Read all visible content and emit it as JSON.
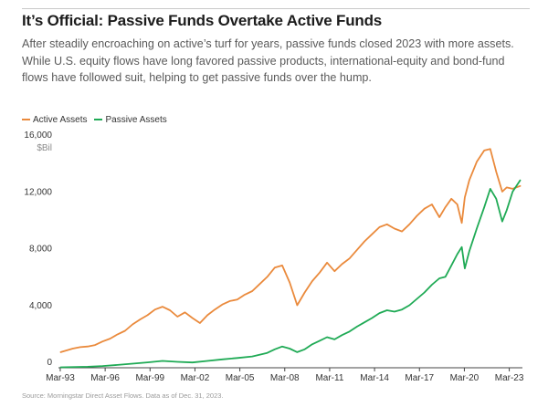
{
  "header": {
    "title": "It’s Official: Passive Funds Overtake Active Funds",
    "subtitle": "After steadily encroaching on active’s turf for years, passive funds closed 2023 with more assets. While U.S. equity flows have long favored passive products, international-equity and bond-fund flows have followed suit, helping to get passive funds over the hump."
  },
  "footer": {
    "source": "Source: Morningstar Direct Asset Flows. Data as of Dec. 31, 2023."
  },
  "chart_data": {
    "type": "line",
    "title": "It’s Official: Passive Funds Overtake Active Funds",
    "xlabel": "",
    "ylabel": "",
    "y_unit_label": "$Bil",
    "xlim": [
      1993.2,
      2024.0
    ],
    "ylim": [
      0,
      16000
    ],
    "x_ticks": [
      {
        "value": 1993.17,
        "label": "Mar-93"
      },
      {
        "value": 1996.17,
        "label": "Mar-96"
      },
      {
        "value": 1999.17,
        "label": "Mar-99"
      },
      {
        "value": 2002.17,
        "label": "Mar-02"
      },
      {
        "value": 2005.17,
        "label": "Mar-05"
      },
      {
        "value": 2008.17,
        "label": "Mar-08"
      },
      {
        "value": 2011.17,
        "label": "Mar-11"
      },
      {
        "value": 2014.17,
        "label": "Mar-14"
      },
      {
        "value": 2017.17,
        "label": "Mar-17"
      },
      {
        "value": 2020.17,
        "label": "Mar-20"
      },
      {
        "value": 2023.17,
        "label": "Mar-23"
      }
    ],
    "y_ticks": [
      {
        "value": 0,
        "label": "0"
      },
      {
        "value": 4000,
        "label": "4,000"
      },
      {
        "value": 8000,
        "label": "8,000"
      },
      {
        "value": 12000,
        "label": "12,000"
      },
      {
        "value": 16000,
        "label": "16,000"
      }
    ],
    "grid": false,
    "legend_position": "top-left",
    "series": [
      {
        "name": "Active Assets",
        "color": "#ea8a3c",
        "x": [
          1993.2,
          1994.0,
          1994.5,
          1995.0,
          1995.5,
          1996.0,
          1996.5,
          1997.0,
          1997.5,
          1998.0,
          1998.5,
          1999.0,
          1999.5,
          2000.0,
          2000.5,
          2001.0,
          2001.5,
          2002.0,
          2002.5,
          2003.0,
          2003.5,
          2004.0,
          2004.5,
          2005.0,
          2005.5,
          2006.0,
          2006.5,
          2007.0,
          2007.5,
          2008.0,
          2008.5,
          2009.0,
          2009.5,
          2010.0,
          2010.5,
          2011.0,
          2011.5,
          2012.0,
          2012.5,
          2013.0,
          2013.5,
          2014.0,
          2014.5,
          2015.0,
          2015.5,
          2016.0,
          2016.5,
          2017.0,
          2017.5,
          2018.0,
          2018.5,
          2018.9,
          2019.3,
          2019.7,
          2020.0,
          2020.2,
          2020.5,
          2021.0,
          2021.5,
          2021.9,
          2022.3,
          2022.7,
          2023.0,
          2023.4,
          2023.9
        ],
        "values": [
          1100,
          1350,
          1450,
          1500,
          1600,
          1850,
          2050,
          2350,
          2600,
          3050,
          3400,
          3700,
          4100,
          4300,
          4050,
          3600,
          3900,
          3500,
          3150,
          3700,
          4100,
          4450,
          4700,
          4800,
          5150,
          5400,
          5900,
          6400,
          7050,
          7200,
          6000,
          4400,
          5300,
          6100,
          6700,
          7400,
          6800,
          7300,
          7700,
          8300,
          8900,
          9400,
          9900,
          10100,
          9800,
          9600,
          10100,
          10700,
          11200,
          11500,
          10600,
          11300,
          11900,
          11500,
          10200,
          12000,
          13200,
          14500,
          15300,
          15400,
          13800,
          12400,
          12700,
          12600,
          12800
        ]
      },
      {
        "name": "Passive Assets",
        "color": "#1faa55",
        "x": [
          1993.2,
          1995.0,
          1996.0,
          1997.0,
          1998.0,
          1999.0,
          2000.0,
          2001.0,
          2002.0,
          2003.0,
          2004.0,
          2005.0,
          2006.0,
          2007.0,
          2007.5,
          2008.0,
          2008.5,
          2009.0,
          2009.5,
          2010.0,
          2010.5,
          2011.0,
          2011.5,
          2012.0,
          2012.5,
          2013.0,
          2013.5,
          2014.0,
          2014.5,
          2015.0,
          2015.5,
          2016.0,
          2016.5,
          2017.0,
          2017.5,
          2018.0,
          2018.5,
          2018.9,
          2019.3,
          2019.7,
          2020.0,
          2020.2,
          2020.5,
          2021.0,
          2021.5,
          2021.9,
          2022.3,
          2022.7,
          2023.0,
          2023.4,
          2023.9
        ],
        "values": [
          30,
          70,
          120,
          200,
          290,
          380,
          480,
          420,
          370,
          480,
          590,
          690,
          800,
          1050,
          1300,
          1500,
          1350,
          1100,
          1300,
          1650,
          1900,
          2150,
          2000,
          2300,
          2550,
          2900,
          3200,
          3500,
          3850,
          4050,
          3950,
          4100,
          4400,
          4850,
          5300,
          5850,
          6300,
          6400,
          7200,
          8000,
          8500,
          7000,
          8200,
          9800,
          11300,
          12600,
          11900,
          10300,
          11100,
          12400,
          13200
        ]
      }
    ]
  }
}
